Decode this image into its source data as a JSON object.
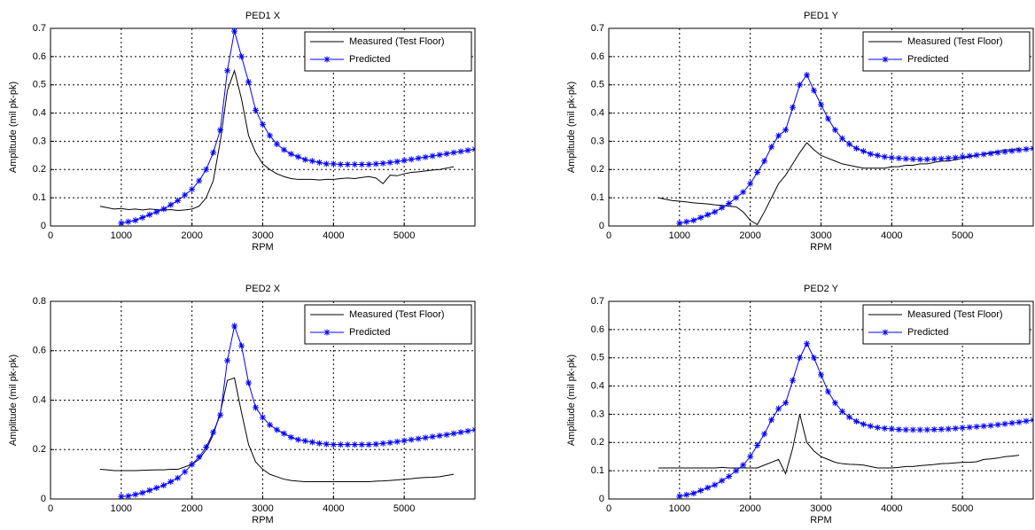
{
  "chart_data": [
    {
      "type": "line",
      "title": "PED1 X",
      "x_label": "RPM",
      "y_label": "Amplitude (mil pk-pk)",
      "xlim": [
        0,
        6000
      ],
      "xticks": [
        0,
        1000,
        2000,
        3000,
        4000,
        5000
      ],
      "ylim": [
        0,
        0.7
      ],
      "yticks": [
        0,
        0.1,
        0.2,
        0.3,
        0.4,
        0.5,
        0.6,
        0.7
      ],
      "grid": true,
      "legend": "upper right",
      "series": [
        {
          "name": "Measured (Test Floor)",
          "color": "#000000",
          "marker": "none",
          "x": [
            700,
            800,
            900,
            1000,
            1100,
            1200,
            1300,
            1400,
            1500,
            1600,
            1700,
            1800,
            1900,
            2000,
            2100,
            2200,
            2300,
            2400,
            2500,
            2600,
            2700,
            2800,
            2900,
            3000,
            3100,
            3200,
            3300,
            3400,
            3500,
            3600,
            3700,
            3800,
            3900,
            4000,
            4100,
            4200,
            4300,
            4400,
            4500,
            4600,
            4700,
            4800,
            4900,
            5000,
            5100,
            5200,
            5300,
            5400,
            5500,
            5600,
            5700
          ],
          "values": [
            0.07,
            0.065,
            0.06,
            0.062,
            0.058,
            0.06,
            0.057,
            0.06,
            0.058,
            0.056,
            0.058,
            0.055,
            0.057,
            0.06,
            0.07,
            0.1,
            0.16,
            0.3,
            0.48,
            0.55,
            0.45,
            0.32,
            0.26,
            0.22,
            0.2,
            0.185,
            0.175,
            0.168,
            0.165,
            0.165,
            0.165,
            0.163,
            0.165,
            0.165,
            0.168,
            0.17,
            0.168,
            0.172,
            0.175,
            0.17,
            0.15,
            0.18,
            0.178,
            0.185,
            0.19,
            0.192,
            0.195,
            0.198,
            0.2,
            0.205,
            0.21
          ]
        },
        {
          "name": "Predicted",
          "color": "#0000ff",
          "marker": "star",
          "x": [
            1000,
            1100,
            1200,
            1300,
            1400,
            1500,
            1600,
            1700,
            1800,
            1900,
            2000,
            2100,
            2200,
            2300,
            2400,
            2500,
            2600,
            2700,
            2800,
            2900,
            3000,
            3100,
            3200,
            3300,
            3400,
            3500,
            3600,
            3700,
            3800,
            3900,
            4000,
            4100,
            4200,
            4300,
            4400,
            4500,
            4600,
            4700,
            4800,
            4900,
            5000,
            5100,
            5200,
            5300,
            5400,
            5500,
            5600,
            5700,
            5800,
            5900,
            6000
          ],
          "values": [
            0.01,
            0.015,
            0.02,
            0.03,
            0.04,
            0.05,
            0.06,
            0.075,
            0.09,
            0.11,
            0.13,
            0.16,
            0.2,
            0.26,
            0.34,
            0.55,
            0.69,
            0.6,
            0.51,
            0.41,
            0.36,
            0.32,
            0.29,
            0.27,
            0.255,
            0.245,
            0.235,
            0.23,
            0.225,
            0.22,
            0.22,
            0.218,
            0.218,
            0.218,
            0.218,
            0.218,
            0.22,
            0.222,
            0.225,
            0.228,
            0.232,
            0.236,
            0.24,
            0.244,
            0.248,
            0.252,
            0.256,
            0.26,
            0.264,
            0.268,
            0.272
          ]
        }
      ]
    },
    {
      "type": "line",
      "title": "PED1 Y",
      "x_label": "RPM",
      "y_label": "Amplitude (mil pk-pk)",
      "xlim": [
        0,
        6000
      ],
      "xticks": [
        0,
        1000,
        2000,
        3000,
        4000,
        5000
      ],
      "ylim": [
        0,
        0.7
      ],
      "yticks": [
        0,
        0.1,
        0.2,
        0.3,
        0.4,
        0.5,
        0.6,
        0.7
      ],
      "grid": true,
      "legend": "upper right",
      "series": [
        {
          "name": "Measured (Test Floor)",
          "color": "#000000",
          "marker": "none",
          "x": [
            700,
            800,
            900,
            1000,
            1100,
            1200,
            1300,
            1400,
            1500,
            1600,
            1700,
            1800,
            1900,
            2000,
            2100,
            2200,
            2300,
            2400,
            2500,
            2600,
            2700,
            2800,
            2900,
            3000,
            3100,
            3200,
            3300,
            3400,
            3500,
            3600,
            3700,
            3800,
            3900,
            4000,
            4100,
            4200,
            4300,
            4400,
            4500,
            4600,
            4700,
            4800,
            4900,
            5000,
            5100,
            5200,
            5300,
            5400,
            5500,
            5600,
            5700,
            5800
          ],
          "values": [
            0.1,
            0.095,
            0.09,
            0.088,
            0.085,
            0.082,
            0.08,
            0.078,
            0.075,
            0.073,
            0.07,
            0.068,
            0.05,
            0.02,
            0.005,
            0.05,
            0.1,
            0.15,
            0.18,
            0.22,
            0.26,
            0.295,
            0.27,
            0.25,
            0.24,
            0.23,
            0.22,
            0.215,
            0.21,
            0.205,
            0.205,
            0.205,
            0.205,
            0.21,
            0.21,
            0.215,
            0.215,
            0.22,
            0.22,
            0.225,
            0.23,
            0.23,
            0.235,
            0.24,
            0.245,
            0.25,
            0.255,
            0.26,
            0.265,
            0.27,
            0.27,
            0.275
          ]
        },
        {
          "name": "Predicted",
          "color": "#0000ff",
          "marker": "star",
          "x": [
            1000,
            1100,
            1200,
            1300,
            1400,
            1500,
            1600,
            1700,
            1800,
            1900,
            2000,
            2100,
            2200,
            2300,
            2400,
            2500,
            2600,
            2700,
            2800,
            2900,
            3000,
            3100,
            3200,
            3300,
            3400,
            3500,
            3600,
            3700,
            3800,
            3900,
            4000,
            4100,
            4200,
            4300,
            4400,
            4500,
            4600,
            4700,
            4800,
            4900,
            5000,
            5100,
            5200,
            5300,
            5400,
            5500,
            5600,
            5700,
            5800,
            5900,
            6000
          ],
          "values": [
            0.01,
            0.015,
            0.02,
            0.03,
            0.04,
            0.05,
            0.065,
            0.08,
            0.1,
            0.12,
            0.15,
            0.19,
            0.23,
            0.28,
            0.32,
            0.34,
            0.42,
            0.5,
            0.535,
            0.48,
            0.43,
            0.38,
            0.34,
            0.31,
            0.29,
            0.275,
            0.265,
            0.255,
            0.25,
            0.245,
            0.242,
            0.24,
            0.238,
            0.237,
            0.236,
            0.236,
            0.237,
            0.238,
            0.24,
            0.242,
            0.245,
            0.248,
            0.251,
            0.254,
            0.257,
            0.26,
            0.263,
            0.266,
            0.269,
            0.272,
            0.275
          ]
        }
      ]
    },
    {
      "type": "line",
      "title": "PED2 X",
      "x_label": "RPM",
      "y_label": "Amplitude (mil pk-pk)",
      "xlim": [
        0,
        6000
      ],
      "xticks": [
        0,
        1000,
        2000,
        3000,
        4000,
        5000
      ],
      "ylim": [
        0,
        0.8
      ],
      "yticks": [
        0,
        0.2,
        0.4,
        0.6,
        0.8
      ],
      "grid": true,
      "legend": "upper right",
      "series": [
        {
          "name": "Measured (Test Floor)",
          "color": "#000000",
          "marker": "none",
          "x": [
            700,
            800,
            900,
            1000,
            1100,
            1200,
            1300,
            1400,
            1500,
            1600,
            1700,
            1800,
            1900,
            2000,
            2100,
            2200,
            2300,
            2400,
            2500,
            2600,
            2700,
            2800,
            2900,
            3000,
            3100,
            3200,
            3300,
            3400,
            3500,
            3600,
            3700,
            3800,
            3900,
            4000,
            4100,
            4200,
            4300,
            4400,
            4500,
            4600,
            4700,
            4800,
            4900,
            5000,
            5100,
            5200,
            5300,
            5400,
            5500,
            5600,
            5700
          ],
          "values": [
            0.12,
            0.118,
            0.115,
            0.115,
            0.115,
            0.115,
            0.116,
            0.117,
            0.118,
            0.118,
            0.12,
            0.12,
            0.13,
            0.14,
            0.16,
            0.2,
            0.26,
            0.35,
            0.48,
            0.49,
            0.35,
            0.22,
            0.15,
            0.12,
            0.1,
            0.09,
            0.08,
            0.075,
            0.072,
            0.07,
            0.07,
            0.07,
            0.07,
            0.07,
            0.07,
            0.07,
            0.07,
            0.07,
            0.07,
            0.072,
            0.073,
            0.075,
            0.077,
            0.08,
            0.082,
            0.085,
            0.087,
            0.088,
            0.09,
            0.095,
            0.1
          ]
        },
        {
          "name": "Predicted",
          "color": "#0000ff",
          "marker": "star",
          "x": [
            1000,
            1100,
            1200,
            1300,
            1400,
            1500,
            1600,
            1700,
            1800,
            1900,
            2000,
            2100,
            2200,
            2300,
            2400,
            2500,
            2600,
            2700,
            2800,
            2900,
            3000,
            3100,
            3200,
            3300,
            3400,
            3500,
            3600,
            3700,
            3800,
            3900,
            4000,
            4100,
            4200,
            4300,
            4400,
            4500,
            4600,
            4700,
            4800,
            4900,
            5000,
            5100,
            5200,
            5300,
            5400,
            5500,
            5600,
            5700,
            5800,
            5900,
            6000
          ],
          "values": [
            0.01,
            0.012,
            0.018,
            0.025,
            0.035,
            0.045,
            0.055,
            0.07,
            0.085,
            0.11,
            0.14,
            0.17,
            0.21,
            0.27,
            0.34,
            0.56,
            0.7,
            0.62,
            0.47,
            0.37,
            0.33,
            0.3,
            0.28,
            0.265,
            0.25,
            0.24,
            0.235,
            0.23,
            0.225,
            0.222,
            0.22,
            0.22,
            0.22,
            0.22,
            0.22,
            0.22,
            0.222,
            0.225,
            0.228,
            0.232,
            0.236,
            0.24,
            0.244,
            0.248,
            0.252,
            0.256,
            0.26,
            0.265,
            0.27,
            0.275,
            0.28
          ]
        }
      ]
    },
    {
      "type": "line",
      "title": "PED2 Y",
      "x_label": "RPM",
      "y_label": "Amplitude (mil pk-pk)",
      "xlim": [
        0,
        6000
      ],
      "xticks": [
        0,
        1000,
        2000,
        3000,
        4000,
        5000
      ],
      "ylim": [
        0,
        0.7
      ],
      "yticks": [
        0,
        0.1,
        0.2,
        0.3,
        0.4,
        0.5,
        0.6,
        0.7
      ],
      "grid": true,
      "legend": "upper right",
      "series": [
        {
          "name": "Measured (Test Floor)",
          "color": "#000000",
          "marker": "none",
          "x": [
            700,
            800,
            900,
            1000,
            1100,
            1200,
            1300,
            1400,
            1500,
            1600,
            1700,
            1800,
            1900,
            2000,
            2100,
            2200,
            2300,
            2400,
            2500,
            2600,
            2700,
            2800,
            2900,
            3000,
            3100,
            3200,
            3300,
            3400,
            3500,
            3600,
            3700,
            3800,
            3900,
            4000,
            4100,
            4200,
            4300,
            4400,
            4500,
            4600,
            4700,
            4800,
            4900,
            5000,
            5100,
            5200,
            5300,
            5400,
            5500,
            5600,
            5700,
            5800
          ],
          "values": [
            0.11,
            0.11,
            0.11,
            0.11,
            0.11,
            0.11,
            0.11,
            0.11,
            0.11,
            0.112,
            0.11,
            0.11,
            0.11,
            0.11,
            0.11,
            0.12,
            0.13,
            0.14,
            0.09,
            0.18,
            0.3,
            0.2,
            0.17,
            0.15,
            0.14,
            0.13,
            0.125,
            0.123,
            0.122,
            0.12,
            0.115,
            0.11,
            0.11,
            0.11,
            0.112,
            0.115,
            0.115,
            0.118,
            0.12,
            0.122,
            0.125,
            0.126,
            0.128,
            0.13,
            0.13,
            0.132,
            0.14,
            0.142,
            0.145,
            0.15,
            0.152,
            0.155
          ]
        },
        {
          "name": "Predicted",
          "color": "#0000ff",
          "marker": "star",
          "x": [
            1000,
            1100,
            1200,
            1300,
            1400,
            1500,
            1600,
            1700,
            1800,
            1900,
            2000,
            2100,
            2200,
            2300,
            2400,
            2500,
            2600,
            2700,
            2800,
            2900,
            3000,
            3100,
            3200,
            3300,
            3400,
            3500,
            3600,
            3700,
            3800,
            3900,
            4000,
            4100,
            4200,
            4300,
            4400,
            4500,
            4600,
            4700,
            4800,
            4900,
            5000,
            5100,
            5200,
            5300,
            5400,
            5500,
            5600,
            5700,
            5800,
            5900,
            6000
          ],
          "values": [
            0.01,
            0.015,
            0.02,
            0.03,
            0.04,
            0.05,
            0.065,
            0.08,
            0.1,
            0.12,
            0.15,
            0.19,
            0.23,
            0.28,
            0.32,
            0.34,
            0.42,
            0.5,
            0.55,
            0.5,
            0.44,
            0.38,
            0.34,
            0.31,
            0.29,
            0.275,
            0.265,
            0.258,
            0.253,
            0.25,
            0.248,
            0.246,
            0.245,
            0.245,
            0.245,
            0.245,
            0.246,
            0.247,
            0.248,
            0.25,
            0.252,
            0.254,
            0.256,
            0.258,
            0.26,
            0.263,
            0.266,
            0.269,
            0.272,
            0.276,
            0.28
          ]
        }
      ]
    }
  ]
}
